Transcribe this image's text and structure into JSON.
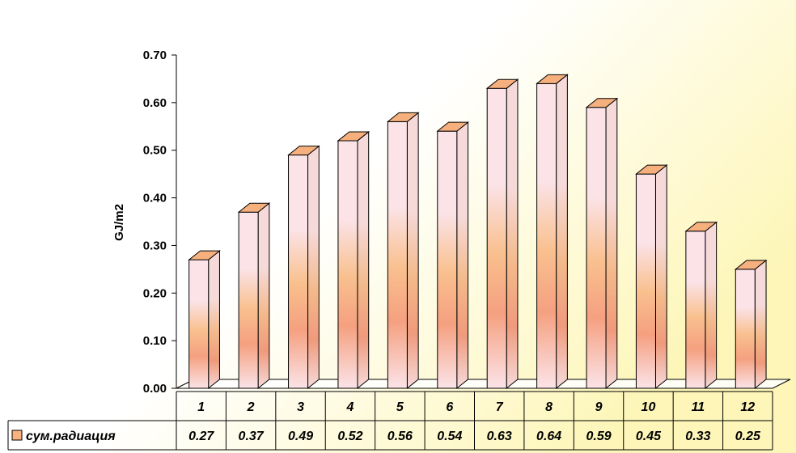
{
  "chart_data": {
    "type": "bar",
    "categories": [
      "1",
      "2",
      "3",
      "4",
      "5",
      "6",
      "7",
      "8",
      "9",
      "10",
      "11",
      "12"
    ],
    "series": [
      {
        "name": "сум.радиация",
        "values": [
          0.27,
          0.37,
          0.49,
          0.52,
          0.56,
          0.54,
          0.63,
          0.64,
          0.59,
          0.45,
          0.33,
          0.25
        ]
      }
    ],
    "value_labels": [
      "0.27",
      "0.37",
      "0.49",
      "0.52",
      "0.56",
      "0.54",
      "0.63",
      "0.64",
      "0.59",
      "0.45",
      "0.33",
      "0.25"
    ],
    "ylabel": "GJ/m2",
    "ylim": [
      0,
      0.7
    ],
    "yticks": [
      "0.00",
      "0.10",
      "0.20",
      "0.30",
      "0.40",
      "0.50",
      "0.60",
      "0.70"
    ],
    "legend_position": "bottom-left (data table)",
    "bar_style": "3d",
    "colors": {
      "bar_light": "#fbe3e8",
      "bar_mid": "#f9c08e",
      "bar_dark": "#f5a080",
      "bar_top": "#f6b07e",
      "legend_swatch": "#f9b27f",
      "background_warm": "#fdf6b8"
    }
  }
}
